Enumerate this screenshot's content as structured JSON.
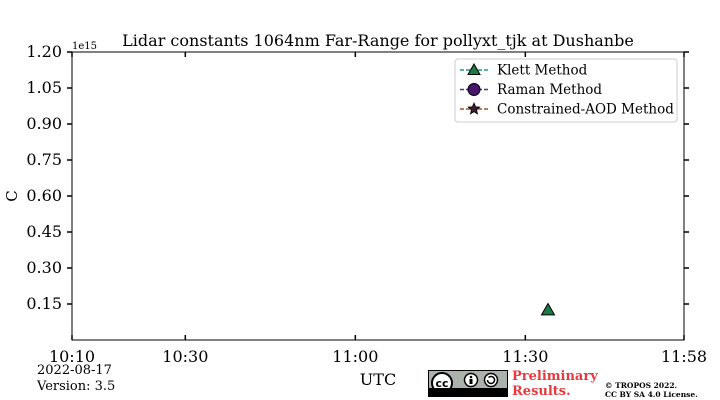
{
  "chart_data": {
    "type": "scatter",
    "title": "Lidar constants 1064nm Far-Range for pollyxt_tjk at Dushanbe",
    "xlabel": "UTC",
    "ylabel": "C",
    "y_offset_label": "1e15",
    "xlim": [
      "10:10",
      "11:58"
    ],
    "ylim": [
      0,
      1.2
    ],
    "xticks": [
      "10:10",
      "10:30",
      "11:00",
      "11:30",
      "11:58"
    ],
    "yticks": [
      "0.15",
      "0.30",
      "0.45",
      "0.60",
      "0.75",
      "0.90",
      "1.05",
      "1.20"
    ],
    "grid": false,
    "legend_position": "top-right",
    "series": [
      {
        "name": "Klett Method",
        "marker": "triangle",
        "color": "#1b7a45",
        "line_color": "#1f9e89",
        "points": [
          {
            "x": "11:34",
            "y": 0.125
          }
        ]
      },
      {
        "name": "Raman Method",
        "marker": "circle",
        "color": "#46166b",
        "line_color": "#5b2c8e",
        "points": []
      },
      {
        "name": "Constrained-AOD Method",
        "marker": "star",
        "color": "#3d1b2f",
        "line_color": "#a0522d",
        "points": []
      }
    ]
  },
  "footer": {
    "date": "2022-08-17",
    "version": "Version: 3.5",
    "license_badge": {
      "icon": "cc-by-sa-icon",
      "text": "cc",
      "by_label": "BY",
      "sa_label": "SA"
    },
    "preliminary_line1": "Preliminary",
    "preliminary_line2": "Results.",
    "copyright_line1": "© TROPOS 2022.",
    "copyright_line2": "CC BY SA 4.0 License."
  }
}
